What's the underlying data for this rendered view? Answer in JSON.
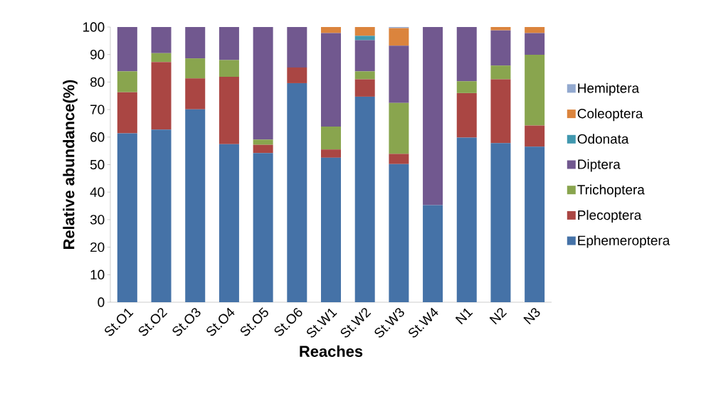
{
  "chart_data": {
    "type": "bar",
    "stacked": true,
    "xlabel": "Reaches",
    "ylabel": "Relative abundance(%)",
    "categories": [
      "St.O1",
      "St.O2",
      "St.O3",
      "St.O4",
      "St.O5",
      "St.O6",
      "St.W1",
      "St.W2",
      "St.W3",
      "St.W4",
      "N1",
      "N2",
      "N3"
    ],
    "ylim": [
      0,
      100
    ],
    "yticks": [
      0,
      10,
      20,
      30,
      40,
      50,
      60,
      70,
      80,
      90,
      100
    ],
    "grid": false,
    "legend": "right",
    "series": [
      {
        "name": "Ephemeroptera",
        "color": "#4572a7",
        "values": [
          61.4,
          62.7,
          70.1,
          57.4,
          54.2,
          79.6,
          52.5,
          74.7,
          50.2,
          35.3,
          59.8,
          57.8,
          56.5
        ]
      },
      {
        "name": "Plecoptera",
        "color": "#aa4643",
        "values": [
          14.9,
          24.6,
          11.2,
          24.5,
          3.0,
          5.7,
          3.0,
          6.3,
          3.7,
          0,
          16.2,
          23.2,
          7.7
        ]
      },
      {
        "name": "Trichoptera",
        "color": "#89a54e",
        "values": [
          7.6,
          3.2,
          7.3,
          6.1,
          1.9,
          0,
          8.3,
          2.9,
          18.5,
          0,
          4.3,
          5.0,
          25.7
        ]
      },
      {
        "name": "Diptera",
        "color": "#71588f",
        "values": [
          16.1,
          9.5,
          11.4,
          12.0,
          40.9,
          14.7,
          34.0,
          11.3,
          20.8,
          64.7,
          19.7,
          12.8,
          7.9
        ]
      },
      {
        "name": "Odonata",
        "color": "#4198af",
        "values": [
          0,
          0,
          0,
          0,
          0,
          0,
          0,
          1.6,
          0,
          0,
          0,
          0,
          0
        ]
      },
      {
        "name": "Coleoptera",
        "color": "#db843d",
        "values": [
          0,
          0,
          0,
          0,
          0,
          0,
          2.2,
          3.2,
          6.4,
          0,
          0,
          1.2,
          2.2
        ]
      },
      {
        "name": "Hemiptera",
        "color": "#93a9cf",
        "values": [
          0,
          0,
          0,
          0,
          0,
          0,
          0,
          0,
          0.4,
          0,
          0,
          0,
          0
        ]
      }
    ]
  }
}
